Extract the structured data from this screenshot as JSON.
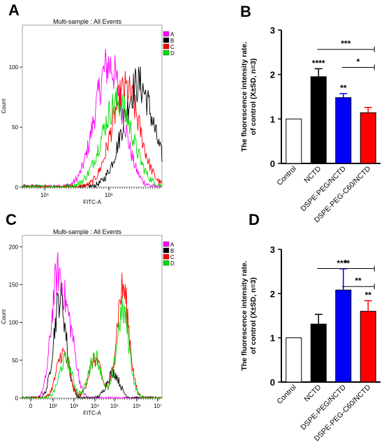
{
  "panels": {
    "A": "A",
    "B": "B",
    "C": "C",
    "D": "D"
  },
  "colors": {
    "A": "#ff00ff",
    "B": "#000000",
    "C": "#ff0000",
    "D": "#00dd00",
    "bar_control": "#ffffff",
    "bar_nctd": "#000000",
    "bar_peg": "#0000ff",
    "bar_c60": "#ff0000"
  },
  "chart_data": [
    {
      "panel": "A",
      "type": "line",
      "title": "Multi-sample : All Events",
      "xlabel": "FITC-A",
      "ylabel": "Count",
      "x_ticks": [
        "10⁵",
        "10⁶"
      ],
      "yticks": [
        0,
        50,
        100
      ],
      "ylim": [
        0,
        135
      ],
      "legend": [
        "A",
        "B",
        "C",
        "D"
      ],
      "legend_position": "top-right",
      "series": [
        {
          "name": "A",
          "peak": 0.62,
          "peak_count": 120,
          "width": 0.1
        },
        {
          "name": "B",
          "peak": 0.83,
          "peak_count": 101,
          "width": 0.11
        },
        {
          "name": "C",
          "peak": 0.74,
          "peak_count": 96,
          "width": 0.1
        },
        {
          "name": "D",
          "peak": 0.68,
          "peak_count": 83,
          "width": 0.11
        }
      ]
    },
    {
      "panel": "B",
      "type": "bar",
      "ylabel": "The fluorescence intensity rate.\nof control (X±SD, n=3)",
      "categories": [
        "Control",
        "NCTD",
        "DSPE-PEG/NCTD",
        "DSPE-PEG-C60/NCTD"
      ],
      "values": [
        1.0,
        1.95,
        1.48,
        1.14
      ],
      "errors": [
        0,
        0.18,
        0.09,
        0.12
      ],
      "ylim": [
        0,
        3
      ],
      "yticks": [
        0,
        1,
        2,
        3
      ],
      "bar_labels": [
        "",
        "****",
        "**",
        ""
      ],
      "brackets": [
        {
          "from": 1,
          "to": 3,
          "label": "***"
        },
        {
          "from": 2,
          "to": 3,
          "label": "*"
        }
      ]
    },
    {
      "panel": "C",
      "type": "line",
      "title": "Multi-sample : All Events",
      "xlabel": "FITC-A",
      "ylabel": "Count",
      "x_ticks": [
        "0",
        "10²",
        "10³",
        "10⁴",
        "10⁵",
        "10⁶",
        "10⁷"
      ],
      "yticks": [
        0,
        50,
        100,
        150,
        200
      ],
      "ylim": [
        0,
        215
      ],
      "legend": [
        "A",
        "B",
        "C",
        "D"
      ],
      "legend_position": "top-right",
      "series": [
        {
          "name": "A",
          "peaks": [
            [
              0.25,
              180
            ],
            [
              0.34,
              95
            ]
          ]
        },
        {
          "name": "B",
          "peaks": [
            [
              0.27,
              155
            ],
            [
              0.65,
              40
            ]
          ]
        },
        {
          "name": "C",
          "peaks": [
            [
              0.29,
              70
            ],
            [
              0.52,
              60
            ],
            [
              0.72,
              170
            ]
          ]
        },
        {
          "name": "D",
          "peaks": [
            [
              0.31,
              60
            ],
            [
              0.52,
              65
            ],
            [
              0.72,
              135
            ]
          ]
        }
      ]
    },
    {
      "panel": "D",
      "type": "bar",
      "ylabel": "The fluorescence intensity rate.\nof control (X±SD, n=3)",
      "categories": [
        "Control",
        "NCTD",
        "DSPE-PEG/NCTD",
        "DSPE-PEG-C60/NCTD"
      ],
      "values": [
        1.0,
        1.31,
        2.08,
        1.6
      ],
      "errors": [
        0,
        0.22,
        0.48,
        0.24
      ],
      "ylim": [
        0,
        3
      ],
      "yticks": [
        0,
        1,
        2,
        3
      ],
      "bar_labels": [
        "",
        "",
        "****",
        "**"
      ],
      "brackets": [
        {
          "from": 1,
          "to": 3,
          "label": "*"
        },
        {
          "from": 2,
          "to": 3,
          "label": "**"
        }
      ]
    }
  ]
}
